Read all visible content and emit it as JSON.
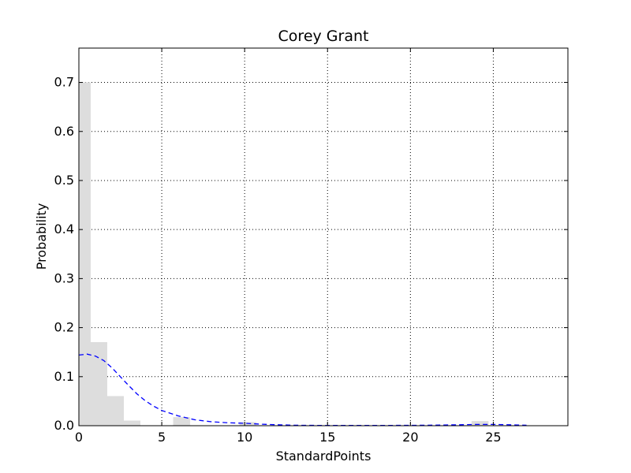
{
  "chart_data": {
    "type": "bar",
    "title": "Corey Grant",
    "xlabel": "StandardPoints",
    "ylabel": "Probability",
    "xlim": [
      0,
      29.5
    ],
    "ylim": [
      0,
      0.77
    ],
    "grid": true,
    "xticks": [
      0,
      5,
      10,
      15,
      20,
      25
    ],
    "yticks": [
      0.0,
      0.1,
      0.2,
      0.3,
      0.4,
      0.5,
      0.6,
      0.7
    ],
    "bar_color": "#dddddd",
    "curve_color": "#0000ff",
    "histogram": {
      "bins": [
        {
          "x0": 0.0,
          "x1": 0.7,
          "value": 0.7
        },
        {
          "x0": 0.7,
          "x1": 1.7,
          "value": 0.17
        },
        {
          "x0": 1.7,
          "x1": 2.7,
          "value": 0.06
        },
        {
          "x0": 2.7,
          "x1": 3.7,
          "value": 0.01
        },
        {
          "x0": 5.7,
          "x1": 6.7,
          "value": 0.017
        },
        {
          "x0": 9.7,
          "x1": 10.7,
          "value": 0.007
        },
        {
          "x0": 23.7,
          "x1": 24.7,
          "value": 0.009
        }
      ]
    },
    "series": [
      {
        "style": "dashed",
        "x": [
          0,
          0.5,
          1,
          1.5,
          2,
          2.5,
          3,
          3.5,
          4,
          4.5,
          5,
          6,
          7,
          8,
          9,
          10,
          11,
          12,
          13,
          15,
          17,
          19,
          21,
          22,
          23,
          24,
          25,
          26,
          27
        ],
        "y": [
          0.144,
          0.146,
          0.142,
          0.133,
          0.118,
          0.1,
          0.082,
          0.065,
          0.051,
          0.04,
          0.031,
          0.02,
          0.012,
          0.008,
          0.006,
          0.005,
          0.003,
          0.002,
          0.001,
          0.0005,
          0.0005,
          0.0007,
          0.001,
          0.0015,
          0.002,
          0.0025,
          0.0025,
          0.002,
          0.001
        ]
      }
    ]
  }
}
